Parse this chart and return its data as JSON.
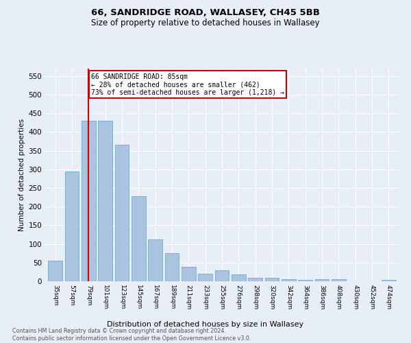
{
  "title": "66, SANDRIDGE ROAD, WALLASEY, CH45 5BB",
  "subtitle": "Size of property relative to detached houses in Wallasey",
  "xlabel": "Distribution of detached houses by size in Wallasey",
  "ylabel": "Number of detached properties",
  "categories": [
    "35sqm",
    "57sqm",
    "79sqm",
    "101sqm",
    "123sqm",
    "145sqm",
    "167sqm",
    "189sqm",
    "211sqm",
    "233sqm",
    "255sqm",
    "276sqm",
    "298sqm",
    "320sqm",
    "342sqm",
    "364sqm",
    "386sqm",
    "408sqm",
    "430sqm",
    "452sqm",
    "474sqm"
  ],
  "values": [
    55,
    295,
    430,
    430,
    365,
    228,
    113,
    75,
    38,
    21,
    29,
    18,
    10,
    10,
    5,
    4,
    5,
    5,
    0,
    0,
    4
  ],
  "bar_color": "#aac4df",
  "bar_edge_color": "#6aaad4",
  "vline_x": 2.0,
  "ylim": [
    0,
    570
  ],
  "yticks": [
    0,
    50,
    100,
    150,
    200,
    250,
    300,
    350,
    400,
    450,
    500,
    550
  ],
  "background_color": "#e8eef5",
  "plot_bg_color": "#e8eef5",
  "annotation_box_text_line1": "66 SANDRIDGE ROAD: 85sqm",
  "annotation_box_text_line2": "← 28% of detached houses are smaller (462)",
  "annotation_box_text_line3": "73% of semi-detached houses are larger (1,218) →",
  "annotation_box_color": "#ffffff",
  "annotation_box_edge_color": "#cc0000",
  "vline_color": "#cc0000",
  "footer_text": "Contains HM Land Registry data © Crown copyright and database right 2024.\nContains public sector information licensed under the Open Government Licence v3.0."
}
